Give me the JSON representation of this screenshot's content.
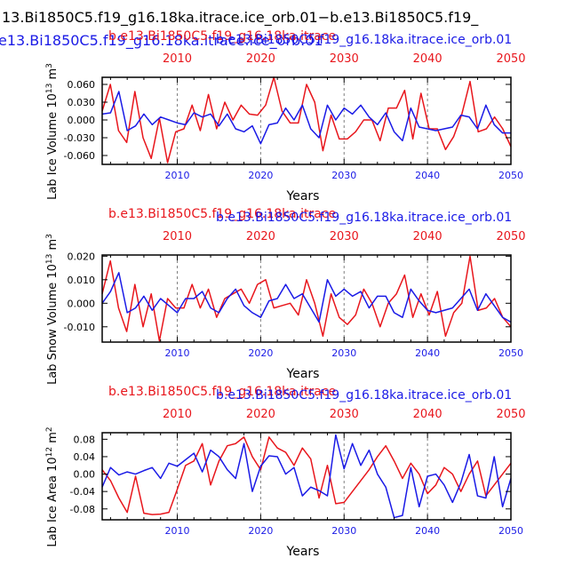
{
  "figure": {
    "top_title_black": "13.Bi1850C5.f19_g16.18ka.itrace.ice_orb.01−b.e13.Bi1850C5.f19_",
    "top_title_blue": "e13.Bi1850C5.f19_g16.18ka.itrace.ice_orb.01",
    "top_title_red": "b.e13.Bi1850C5.f19_g16.18ka.itrace.ice_orb.01"
  },
  "colors": {
    "red": "#e8161c",
    "blue": "#1a1ae6",
    "black": "#000000",
    "ref_line": "#808080"
  },
  "chart_data": [
    {
      "type": "line",
      "title_red": "b.e13.Bi1850C5.f19_g16.18ka.itrace",
      "title_blue": "b.e13.Bi1850C5.f19_g16.18ka.itrace.ice_orb.01",
      "ylabel": "Lab Ice Volume 10",
      "ylabel_exp": "13",
      "ylabel_unit": "m",
      "ylabel_unit_exp": "3",
      "xlabel": "Years",
      "xlim": [
        2001,
        2050
      ],
      "ylim": [
        -0.075,
        0.072
      ],
      "yticks": [
        0.06,
        0.03,
        0.0,
        -0.03,
        -0.06
      ],
      "ytick_labels": [
        "0.060",
        "0.030",
        "0.000",
        "-0.030",
        "-0.060"
      ],
      "xticks": [
        2010,
        2020,
        2030,
        2040,
        2050
      ],
      "xtick_labels": [
        "2010",
        "2020",
        "2030",
        "2040",
        "2050"
      ],
      "ref_lines": [
        2010,
        2020,
        2030,
        2040
      ],
      "series": [
        {
          "color": "red",
          "values": [
            0.015,
            0.06,
            -0.018,
            -0.038,
            0.048,
            -0.03,
            -0.065,
            0.003,
            -0.072,
            -0.02,
            -0.015,
            0.025,
            -0.018,
            0.043,
            -0.015,
            0.03,
            0.0,
            0.025,
            0.01,
            0.008,
            0.025,
            0.072,
            0.015,
            -0.005,
            -0.005,
            0.06,
            0.03,
            -0.052,
            0.008,
            -0.032,
            -0.032,
            -0.02,
            0.0,
            0.0,
            -0.035,
            0.02,
            0.02,
            0.05,
            -0.032,
            0.045,
            -0.015,
            -0.015,
            -0.05,
            -0.028,
            0.01,
            0.065,
            -0.02,
            -0.015,
            0.005,
            -0.015,
            -0.045
          ]
        },
        {
          "color": "blue",
          "values": [
            0.01,
            0.012,
            0.048,
            -0.018,
            -0.01,
            0.01,
            -0.008,
            0.005,
            0.0,
            -0.005,
            -0.008,
            0.012,
            0.005,
            0.01,
            -0.01,
            0.01,
            -0.015,
            -0.02,
            -0.01,
            -0.04,
            -0.008,
            -0.005,
            0.02,
            0.0,
            0.025,
            -0.015,
            -0.03,
            0.025,
            0.0,
            0.02,
            0.01,
            0.025,
            0.005,
            -0.008,
            0.012,
            -0.02,
            -0.035,
            0.02,
            -0.012,
            -0.015,
            -0.018,
            -0.015,
            -0.012,
            0.008,
            0.005,
            -0.015,
            0.025,
            -0.008,
            -0.022,
            -0.022
          ]
        }
      ]
    },
    {
      "type": "line",
      "title_red": "b.e13.Bi1850C5.f19_g16.18ka.itrace",
      "title_blue": "b.e13.Bi1850C5.f19_g16.18ka.itrace.ice_orb.01",
      "ylabel": "Lab Snow Volume 10",
      "ylabel_exp": "13",
      "ylabel_unit": "m",
      "ylabel_unit_exp": "3",
      "xlabel": "Years",
      "xlim": [
        2001,
        2050
      ],
      "ylim": [
        -0.0165,
        0.0205
      ],
      "yticks": [
        0.02,
        0.01,
        0.0,
        -0.01
      ],
      "ytick_labels": [
        "0.020",
        "0.010",
        "0.000",
        "-0.010"
      ],
      "xticks": [
        2010,
        2020,
        2030,
        2040,
        2050
      ],
      "xtick_labels": [
        "2010",
        "2020",
        "2030",
        "2040",
        "2050"
      ],
      "ref_lines": [
        2010,
        2020,
        2030,
        2040
      ],
      "series": [
        {
          "color": "red",
          "values": [
            0.004,
            0.018,
            -0.002,
            -0.012,
            0.008,
            -0.01,
            0.004,
            -0.016,
            0.002,
            -0.002,
            -0.002,
            0.008,
            -0.002,
            0.006,
            -0.006,
            0.002,
            0.004,
            0.006,
            0.0,
            0.008,
            0.01,
            -0.002,
            -0.001,
            0.0,
            -0.005,
            0.01,
            0.0,
            -0.014,
            0.004,
            -0.006,
            -0.009,
            -0.005,
            0.006,
            0.0,
            -0.01,
            0.0,
            0.004,
            0.012,
            -0.006,
            0.004,
            -0.005,
            0.005,
            -0.014,
            -0.004,
            0.0,
            0.02,
            -0.003,
            -0.002,
            0.002,
            -0.006,
            -0.01
          ]
        },
        {
          "color": "blue",
          "values": [
            0.0,
            0.005,
            0.013,
            -0.004,
            -0.002,
            0.003,
            -0.003,
            0.002,
            -0.001,
            -0.004,
            0.002,
            0.002,
            0.005,
            -0.002,
            -0.004,
            0.002,
            0.006,
            -0.001,
            -0.004,
            -0.006,
            0.001,
            0.002,
            0.008,
            0.002,
            0.004,
            -0.002,
            -0.008,
            0.01,
            0.003,
            0.006,
            0.003,
            0.005,
            -0.002,
            0.003,
            0.003,
            -0.004,
            -0.006,
            0.006,
            0.001,
            -0.003,
            -0.004,
            -0.003,
            -0.002,
            0.002,
            0.006,
            -0.003,
            0.004,
            -0.001,
            -0.006,
            -0.008
          ]
        }
      ]
    },
    {
      "type": "line",
      "title_red": "b.e13.Bi1850C5.f19_g16.18ka.itrace",
      "title_blue": "b.e13.Bi1850C5.f19_g16.18ka.itrace.ice_orb.01",
      "ylabel": "Lab Ice Area 10",
      "ylabel_exp": "12",
      "ylabel_unit": "m",
      "ylabel_unit_exp": "2",
      "xlabel": "Years",
      "xlim": [
        2001,
        2050
      ],
      "ylim": [
        -0.105,
        0.095
      ],
      "yticks": [
        0.08,
        0.04,
        0.0,
        -0.04,
        -0.08
      ],
      "ytick_labels": [
        "0.08",
        "0.04",
        "0.00",
        "-0.04",
        "-0.08"
      ],
      "xticks": [
        2010,
        2020,
        2030,
        2040,
        2050
      ],
      "xtick_labels": [
        "2010",
        "2020",
        "2030",
        "2040",
        "2050"
      ],
      "ref_lines": [
        2010,
        2020,
        2030,
        2040
      ],
      "series": [
        {
          "color": "red",
          "values": [
            0.01,
            -0.015,
            -0.055,
            -0.088,
            -0.005,
            -0.09,
            -0.093,
            -0.092,
            -0.088,
            -0.035,
            0.02,
            0.03,
            0.07,
            -0.025,
            0.03,
            0.065,
            0.07,
            0.085,
            0.04,
            0.01,
            0.085,
            0.06,
            0.05,
            0.02,
            0.06,
            0.035,
            -0.055,
            0.02,
            -0.068,
            -0.065,
            -0.04,
            -0.015,
            0.01,
            0.04,
            0.065,
            0.03,
            -0.01,
            0.025,
            0.0,
            -0.045,
            -0.025,
            0.015,
            0.0,
            -0.04,
            0.0,
            0.03,
            -0.05,
            -0.025,
            0.0,
            0.025
          ]
        },
        {
          "color": "blue",
          "values": [
            -0.03,
            0.015,
            -0.002,
            0.005,
            0.0,
            0.008,
            0.015,
            -0.01,
            0.025,
            0.018,
            0.033,
            0.048,
            0.005,
            0.055,
            0.04,
            0.01,
            -0.01,
            0.07,
            -0.04,
            0.018,
            0.042,
            0.04,
            0.0,
            0.015,
            -0.05,
            -0.03,
            -0.038,
            -0.05,
            0.09,
            0.012,
            0.07,
            0.02,
            0.055,
            0.0,
            -0.03,
            -0.1,
            -0.095,
            0.015,
            -0.075,
            -0.005,
            0.0,
            -0.025,
            -0.065,
            -0.02,
            0.045,
            -0.05,
            -0.055,
            0.04,
            -0.075,
            -0.01
          ]
        }
      ]
    }
  ]
}
